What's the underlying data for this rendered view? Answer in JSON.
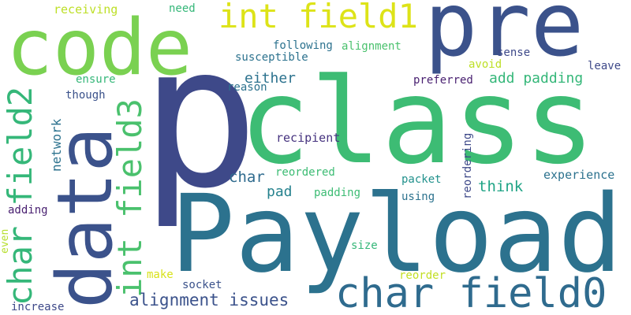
{
  "palette": {
    "p": "#3e4989",
    "class": "#3dbc74",
    "payload": "#2c728e",
    "pre": "#3b528b",
    "code": "#7ad151",
    "data": "#3b528b",
    "char_field0": "#2f6b8e",
    "int_field1": "#dde318",
    "char_field2": "#35b779",
    "int_field3": "#4ac16d",
    "alignment_issues": "#3b528b",
    "add_padding": "#35b779",
    "either": "#2c728e",
    "think": "#20a486",
    "char": "#2f6b8e",
    "pad": "#26828e",
    "network": "#2c728e",
    "receiving": "#bddf26",
    "need": "#35b779",
    "following": "#2c728e",
    "alignment": "#4ac16d",
    "susceptible": "#2c728e",
    "sense": "#3e4989",
    "avoid": "#bddf26",
    "leave": "#3e4989",
    "ensure": "#35b779",
    "preferred": "#481f70",
    "reason": "#2c728e",
    "though": "#3b528b",
    "recipient": "#46337f",
    "reordered": "#3dbc74",
    "packet": "#21918c",
    "reordering": "#3e4989",
    "experience": "#2c728e",
    "padding": "#3dbc74",
    "using": "#2c728e",
    "adding": "#481f70",
    "even": "#b5de2b",
    "size": "#35b779",
    "make": "#d8e219",
    "socket": "#3b528b",
    "reorder": "#c2df23",
    "increase": "#3e4989"
  },
  "words": {
    "p": "p",
    "class": "class",
    "payload": "Payload",
    "pre": "pre",
    "code": "code",
    "data": "data",
    "char_field0": "char field0",
    "int_field1": "int field1",
    "char_field2": "char field2",
    "int_field3": "int field3",
    "alignment_issues": "alignment issues",
    "add_padding": "add padding",
    "either": "either",
    "think": "think",
    "char": "char",
    "pad": "pad",
    "network": "network",
    "receiving": "receiving",
    "need": "need",
    "following": "following",
    "alignment": "alignment",
    "susceptible": "susceptible",
    "sense": "sense",
    "avoid": "avoid",
    "leave": "leave",
    "ensure": "ensure",
    "preferred": "preferred",
    "reason": "reason",
    "though": "though",
    "recipient": "recipient",
    "reordered": "reordered",
    "packet": "packet",
    "reordering": "reordering",
    "experience": "experience",
    "padding": "padding",
    "using": "using",
    "adding": "adding",
    "even": "even",
    "size": "size",
    "make": "make",
    "socket": "socket",
    "reorder": "reorder",
    "increase": "increase"
  }
}
